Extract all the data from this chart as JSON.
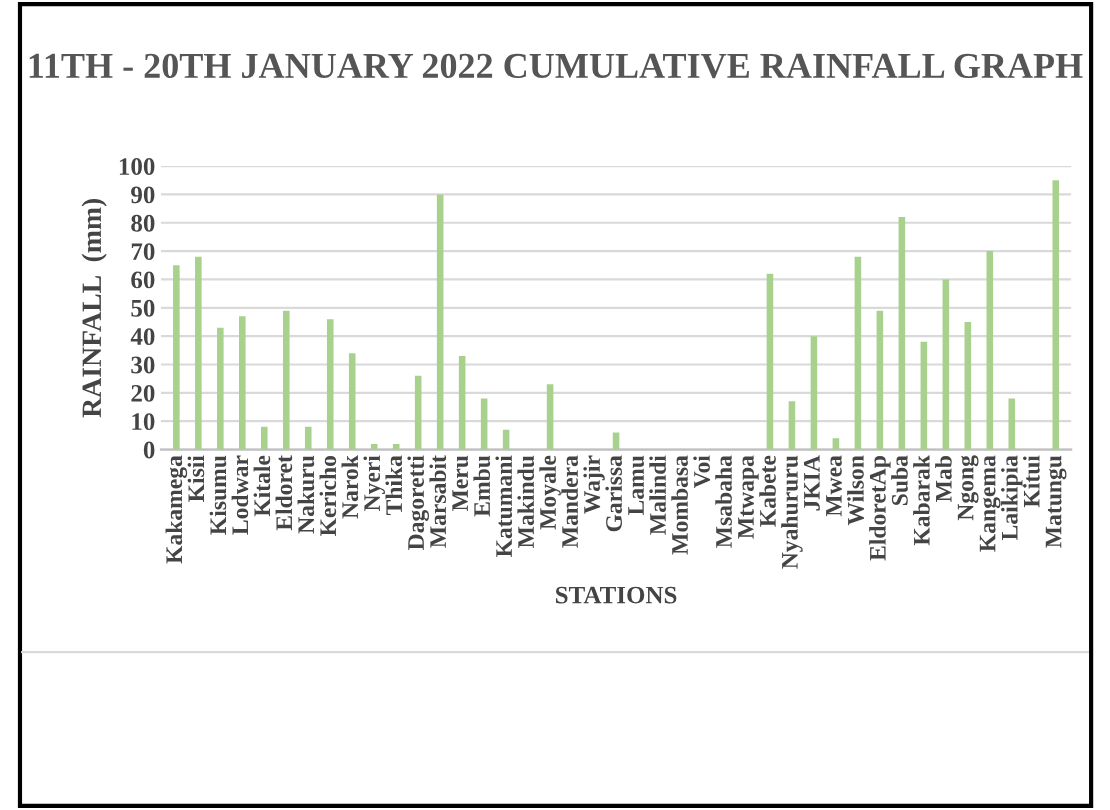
{
  "chart_data": {
    "type": "bar",
    "title": "11TH - 20TH JANUARY 2022 CUMULATIVE RAINFALL GRAPH",
    "xlabel": "STATIONS",
    "ylabel": "RAINFALL  (mm)",
    "categories": [
      "Kakamega",
      "Kisii",
      "Kisumu",
      "Lodwar",
      "Kitale",
      "Eldoret",
      "Nakuru",
      "Kericho",
      "Narok",
      "Nyeri",
      "Thika",
      "Dagoretti",
      "Marsabit",
      "Meru",
      "Embu",
      "Katumani",
      "Makindu",
      "Moyale",
      "Mandera",
      "Wajir",
      "Garissa",
      "Lamu",
      "Malindi",
      "Mombasa",
      "Voi",
      "Msabaha",
      "Mtwapa",
      "Kabete",
      "Nyahururu",
      "JKIA",
      "Mwea",
      "Wilson",
      "EldoretAp",
      "Suba",
      "Kabarak",
      "Mab",
      "Ngong",
      "Kangema",
      "Laikipia",
      "Kitui",
      "Matungu"
    ],
    "values": [
      65,
      68,
      43,
      47,
      8,
      49,
      8,
      46,
      34,
      2,
      2,
      26,
      90,
      33,
      18,
      7,
      0,
      23,
      0,
      0,
      6,
      0,
      0,
      0,
      0,
      0,
      0,
      62,
      17,
      40,
      4,
      68,
      49,
      82,
      38,
      60,
      45,
      70,
      18,
      0,
      95
    ],
    "color": "#a9d18e",
    "ylim": [
      0,
      100
    ],
    "yticks": [
      0,
      10,
      20,
      30,
      40,
      50,
      60,
      70,
      80,
      90,
      100
    ],
    "grid": "y",
    "legend": false
  }
}
